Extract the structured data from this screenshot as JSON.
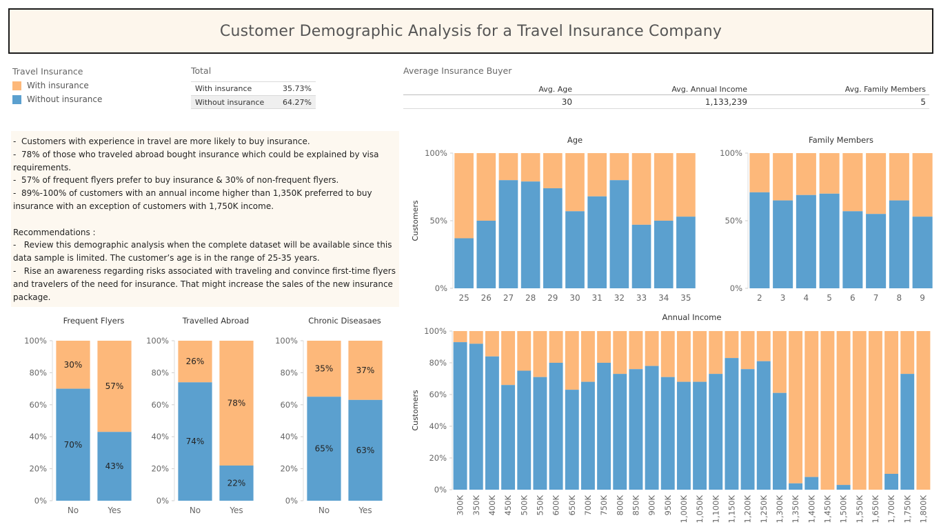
{
  "title": "Customer Demographic Analysis for a Travel Insurance Company",
  "colors": {
    "with": "#FDB87A",
    "without": "#5BA0CF"
  },
  "legend": {
    "title": "Travel Insurance",
    "items": [
      {
        "label": "With insurance",
        "color": "#FDB87A"
      },
      {
        "label": "Without insurance",
        "color": "#5BA0CF"
      }
    ]
  },
  "total": {
    "title": "Total",
    "rows": [
      {
        "label": "With insurance",
        "value": "35.73%"
      },
      {
        "label": "Without insurance",
        "value": "64.27%"
      }
    ]
  },
  "avg_buyer": {
    "title": "Average Insurance Buyer",
    "headers": [
      "Avg. Age",
      "Avg. Annual Income",
      "Avg. Family Members"
    ],
    "values": [
      "30",
      "1,133,239",
      "5"
    ]
  },
  "notes": {
    "lines": [
      "-  Customers with experience in travel are more likely to buy insurance.",
      "-  78% of those who traveled abroad bought insurance which could be explained by visa requirements.",
      "-  57% of frequent flyers prefer to buy insurance & 30% of non-frequent flyers.",
      "-  89%-100% of customers with an annual income higher than 1,350K preferred to buy insurance with an exception of customers with 1,750K income."
    ],
    "rec_title": "Recommendations :",
    "recs": [
      "-   Review this demographic analysis when the complete dataset will be available since this data sample is limited. The customer’s age is in the range of 25-35 years.",
      "-   Rise an awareness regarding risks associated with traveling and convince first-time flyers and travelers of the need for insurance. That might increase the sales of the new insurance package."
    ]
  },
  "chart_data": [
    {
      "id": "age",
      "type": "bar",
      "stacked": true,
      "title": "Age",
      "ylabel": "Customers",
      "ylim": [
        0,
        100
      ],
      "yticks": [
        "0%",
        "50%",
        "100%"
      ],
      "categories": [
        "25",
        "26",
        "27",
        "28",
        "29",
        "30",
        "31",
        "32",
        "33",
        "34",
        "35"
      ],
      "series": [
        {
          "name": "Without insurance",
          "values": [
            37,
            50,
            80,
            79,
            74,
            57,
            68,
            80,
            47,
            50,
            53
          ]
        },
        {
          "name": "With insurance",
          "values": [
            63,
            50,
            20,
            21,
            26,
            43,
            32,
            20,
            53,
            50,
            47
          ]
        }
      ]
    },
    {
      "id": "family",
      "type": "bar",
      "stacked": true,
      "title": "Family Members",
      "ylim": [
        0,
        100
      ],
      "yticks": [
        "0%",
        "50%",
        "100%"
      ],
      "categories": [
        "2",
        "3",
        "4",
        "5",
        "6",
        "7",
        "8",
        "9"
      ],
      "series": [
        {
          "name": "Without insurance",
          "values": [
            71,
            65,
            69,
            70,
            57,
            55,
            65,
            53
          ]
        },
        {
          "name": "With insurance",
          "values": [
            29,
            35,
            31,
            30,
            43,
            45,
            35,
            47
          ]
        }
      ]
    },
    {
      "id": "income",
      "type": "bar",
      "stacked": true,
      "title": "Annual Income",
      "ylabel": "Customers",
      "ylim": [
        0,
        100
      ],
      "yticks": [
        "0%",
        "20%",
        "40%",
        "60%",
        "80%",
        "100%"
      ],
      "categories": [
        "300K",
        "350K",
        "400K",
        "450K",
        "500K",
        "550K",
        "600K",
        "650K",
        "700K",
        "750K",
        "800K",
        "850K",
        "900K",
        "950K",
        "1,000K",
        "1,050K",
        "1,100K",
        "1,150K",
        "1,200K",
        "1,250K",
        "1,300K",
        "1,350K",
        "1,400K",
        "1,450K",
        "1,500K",
        "1,550K",
        "1,650K",
        "1,700K",
        "1,750K",
        "1,800K"
      ],
      "series": [
        {
          "name": "Without insurance",
          "values": [
            93,
            92,
            84,
            66,
            75,
            71,
            80,
            63,
            68,
            80,
            73,
            76,
            78,
            71,
            68,
            68,
            73,
            83,
            76,
            81,
            61,
            4,
            8,
            0,
            3,
            0,
            0,
            10,
            73,
            0
          ]
        },
        {
          "name": "With insurance",
          "values": [
            7,
            8,
            16,
            34,
            25,
            29,
            20,
            37,
            32,
            20,
            27,
            24,
            22,
            29,
            32,
            32,
            27,
            17,
            24,
            19,
            39,
            96,
            92,
            100,
            97,
            100,
            100,
            90,
            27,
            100
          ]
        }
      ]
    },
    {
      "id": "frequent",
      "type": "bar",
      "stacked": true,
      "title": "Frequent Flyers",
      "ylim": [
        0,
        100
      ],
      "yticks": [
        "0%",
        "20%",
        "40%",
        "60%",
        "80%",
        "100%"
      ],
      "categories": [
        "No",
        "Yes"
      ],
      "series": [
        {
          "name": "Without insurance",
          "values": [
            70,
            43
          ],
          "labels": [
            "70%",
            "43%"
          ]
        },
        {
          "name": "With insurance",
          "values": [
            30,
            57
          ],
          "labels": [
            "30%",
            "57%"
          ]
        }
      ]
    },
    {
      "id": "abroad",
      "type": "bar",
      "stacked": true,
      "title": "Travelled Abroad",
      "ylim": [
        0,
        100
      ],
      "yticks": [
        "0%",
        "20%",
        "40%",
        "60%",
        "80%",
        "100%"
      ],
      "categories": [
        "No",
        "Yes"
      ],
      "series": [
        {
          "name": "Without insurance",
          "values": [
            74,
            22
          ],
          "labels": [
            "74%",
            "22%"
          ]
        },
        {
          "name": "With insurance",
          "values": [
            26,
            78
          ],
          "labels": [
            "26%",
            "78%"
          ]
        }
      ]
    },
    {
      "id": "chronic",
      "type": "bar",
      "stacked": true,
      "title": "Chronic Diseasaes",
      "ylim": [
        0,
        100
      ],
      "yticks": [
        "0%",
        "20%",
        "40%",
        "60%",
        "80%",
        "100%"
      ],
      "categories": [
        "No",
        "Yes"
      ],
      "series": [
        {
          "name": "Without insurance",
          "values": [
            65,
            63
          ],
          "labels": [
            "65%",
            "63%"
          ]
        },
        {
          "name": "With insurance",
          "values": [
            35,
            37
          ],
          "labels": [
            "35%",
            "37%"
          ]
        }
      ]
    }
  ]
}
